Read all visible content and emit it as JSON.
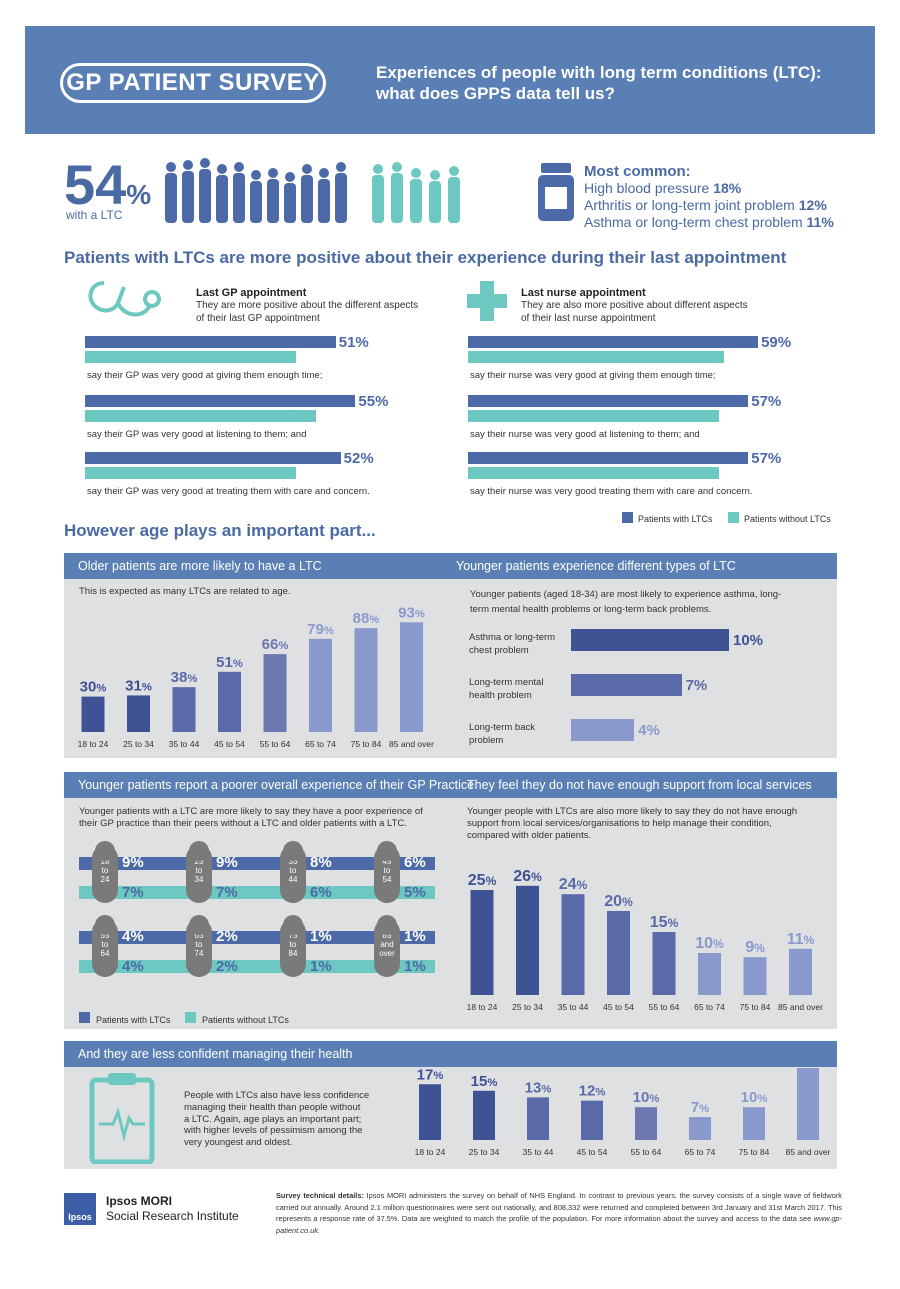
{
  "header": {
    "logo_text": "GP PATIENT SURVEY",
    "title_line1": "Experiences of people with long term conditions (LTC):",
    "title_line2": "what does GPPS data tell us?"
  },
  "headline": {
    "value": "54",
    "unit": "%",
    "label": "with a LTC"
  },
  "most_common": {
    "title": "Most common:",
    "items": [
      {
        "label": "High blood pressure",
        "value": "18%"
      },
      {
        "label": "Arthritis or long-term joint problem",
        "value": "12%"
      },
      {
        "label": "Asthma or long-term chest problem",
        "value": "11%"
      }
    ]
  },
  "section1": {
    "title": "Patients with LTCs are more positive about their experience during their last appointment",
    "gp": {
      "title": "Last GP appointment",
      "text1": "They are more positive about the different aspects",
      "text2": "of their last GP appointment",
      "rows": [
        {
          "with": "51",
          "without": "43",
          "caption": "say their GP was very good at giving them enough time;"
        },
        {
          "with": "55",
          "without": "47",
          "caption": "say their GP was very good at listening to them; and"
        },
        {
          "with": "52",
          "without": "43",
          "caption": "say their GP was very good at treating them with care and concern."
        }
      ]
    },
    "nurse": {
      "title": "Last nurse appointment",
      "text1": "They are also more positive about different aspects",
      "text2": "of their last nurse appointment",
      "rows": [
        {
          "with": "59",
          "without": "52",
          "caption": "say their nurse was very good at giving them enough time;"
        },
        {
          "with": "57",
          "without": "51",
          "caption": "say their nurse was very good at listening to them; and"
        },
        {
          "with": "57",
          "without": "51",
          "caption": "say their nurse was very good treating them with care and concern."
        }
      ]
    },
    "legend": {
      "with": "Patients with LTCs",
      "without": "Patients without LTCs"
    }
  },
  "section2_title": "However age plays an important part...",
  "older_panel": {
    "title": "Older patients are more likely to have a LTC",
    "text": "This is expected as many LTCs are related to age."
  },
  "younger_types_panel": {
    "title": "Younger patients experience different types of LTC",
    "text1": "Younger patients (aged 18-34) are most likely to experience asthma, long-",
    "text2": "term mental health problems or long-term back problems.",
    "items": [
      {
        "label1": "Asthma or long-term",
        "label2": "chest problem",
        "value": 10,
        "display": "10%"
      },
      {
        "label1": "Long-term mental",
        "label2": "health problem",
        "value": 7,
        "display": "7%"
      },
      {
        "label1": "Long-term back",
        "label2": "problem",
        "value": 4,
        "display": "4%"
      }
    ]
  },
  "experience_panel": {
    "title": "Younger patients report a poorer overall experience of their GP Practice",
    "text1": "Younger patients with a LTC are more likely to say they have a poor experience of",
    "text2": "their GP practice than their peers without a LTC and older patients with a LTC.",
    "rows": [
      [
        {
          "age": [
            "18",
            "to",
            "24"
          ],
          "with": "9%",
          "without": "7%"
        },
        {
          "age": [
            "25",
            "to",
            "34"
          ],
          "with": "9%",
          "without": "7%"
        },
        {
          "age": [
            "35",
            "to",
            "44"
          ],
          "with": "8%",
          "without": "6%"
        },
        {
          "age": [
            "45",
            "to",
            "54"
          ],
          "with": "6%",
          "without": "5%"
        }
      ],
      [
        {
          "age": [
            "55",
            "to",
            "64"
          ],
          "with": "4%",
          "without": "4%"
        },
        {
          "age": [
            "65",
            "to",
            "74"
          ],
          "with": "2%",
          "without": "2%"
        },
        {
          "age": [
            "75",
            "to",
            "84"
          ],
          "with": "1%",
          "without": "1%"
        },
        {
          "age": [
            "85",
            "and",
            "over"
          ],
          "with": "1%",
          "without": "1%"
        }
      ]
    ],
    "legend": {
      "with": "Patients with LTCs",
      "without": "Patients without LTCs"
    }
  },
  "support_panel": {
    "title": "They feel they do not have enough support from local services",
    "text1": "Younger people with LTCs are also more likely to say they do not have enough",
    "text2": "support from local services/organisations to help manage their condition,",
    "text3": "compared with older patients."
  },
  "confidence_panel": {
    "title": "And they are less confident managing their health",
    "text1": "People with LTCs also have less confidence",
    "text2": "managing their health than people without",
    "text3": "a LTC. Again, age plays an important part;",
    "text4": "with higher levels of pessimism among the",
    "text5": "very youngest and oldest."
  },
  "chart_data": [
    {
      "type": "bar",
      "title": "Older patients are more likely to have a LTC",
      "categories": [
        "18 to 24",
        "25 to 34",
        "35 to 44",
        "45 to 54",
        "55 to 64",
        "65 to 74",
        "75 to 84",
        "85 and over"
      ],
      "values": [
        30,
        31,
        38,
        51,
        66,
        79,
        88,
        93
      ],
      "ylim": [
        0,
        100
      ]
    },
    {
      "type": "bar",
      "title": "They feel they do not have enough support from local services",
      "categories": [
        "18 to 24",
        "25 to 34",
        "35 to 44",
        "45 to 54",
        "55 to 64",
        "65 to 74",
        "75 to 84",
        "85 and over"
      ],
      "values": [
        25,
        26,
        24,
        20,
        15,
        10,
        9,
        11
      ],
      "ylim": [
        0,
        30
      ]
    },
    {
      "type": "bar",
      "title": "And they are less confident managing their health",
      "categories": [
        "18 to 24",
        "25 to 34",
        "35 to 44",
        "45 to 54",
        "55 to 64",
        "65 to 74",
        "75 to 84",
        "85 and over"
      ],
      "values": [
        17,
        15,
        13,
        12,
        10,
        7,
        10,
        22
      ],
      "ylim": [
        0,
        25
      ]
    }
  ],
  "colors": {
    "dark": "#4d6aa8",
    "teal": "#6cc8c0",
    "header": "#5a7fb5",
    "panel": "#dfe0e2"
  },
  "footer": {
    "org1": "Ipsos MORI",
    "org2": "Social Research Institute",
    "logo": "Ipsos",
    "tech_label": "Survey technical details:",
    "tech_text": "Ipsos MORI administers the survey on behalf of NHS England. In contrast to previous years, the survey consists of a single wave of fieldwork carried out annually. Around 2.1 million questionnaires were sent out nationally, and 808,332 were returned and completed between 3rd January and 31st March 2017. This represents a response rate of 37.5%. Data are weighted to match the profile of the population. For more information about the survey and access to the data see",
    "url": "www.gp-patient.co.uk."
  }
}
